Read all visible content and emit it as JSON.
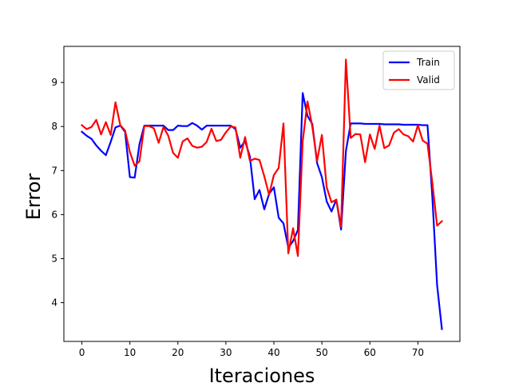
{
  "chart_data": {
    "type": "line",
    "title": "",
    "xlabel": "Iteraciones",
    "ylabel": "Error",
    "xlim": [
      -3.75,
      78.75
    ],
    "ylim": [
      3.12,
      9.82
    ],
    "xticks": [
      0,
      10,
      20,
      30,
      40,
      50,
      60,
      70
    ],
    "yticks": [
      4,
      5,
      6,
      7,
      8,
      9
    ],
    "grid": false,
    "legend": "top-right",
    "x": [
      0,
      1,
      2,
      3,
      4,
      5,
      6,
      7,
      8,
      9,
      10,
      11,
      12,
      13,
      14,
      15,
      16,
      17,
      18,
      19,
      20,
      21,
      22,
      23,
      24,
      25,
      26,
      27,
      28,
      29,
      30,
      31,
      32,
      33,
      34,
      35,
      36,
      37,
      38,
      39,
      40,
      41,
      42,
      43,
      44,
      45,
      46,
      47,
      48,
      49,
      50,
      51,
      52,
      53,
      54,
      55,
      56,
      57,
      58,
      59,
      60,
      61,
      62,
      63,
      64,
      65,
      66,
      67,
      68,
      69,
      70,
      71,
      72,
      73,
      74,
      75
    ],
    "series": [
      {
        "name": "Train",
        "color": "#0000ff",
        "values": [
          7.88,
          7.79,
          7.72,
          7.57,
          7.45,
          7.35,
          7.65,
          7.98,
          8.02,
          7.88,
          6.85,
          6.84,
          7.6,
          8.02,
          8.02,
          8.02,
          8.02,
          8.02,
          7.92,
          7.92,
          8.02,
          8.01,
          8.01,
          8.08,
          8.02,
          7.93,
          8.02,
          8.02,
          8.02,
          8.02,
          8.02,
          8.02,
          7.94,
          7.52,
          7.67,
          7.32,
          6.35,
          6.56,
          6.12,
          6.47,
          6.62,
          5.93,
          5.8,
          5.25,
          5.4,
          5.65,
          8.76,
          8.24,
          8.06,
          7.17,
          6.85,
          6.3,
          6.07,
          6.34,
          5.66,
          7.44,
          8.07,
          8.07,
          8.07,
          8.06,
          8.06,
          8.06,
          8.06,
          8.05,
          8.05,
          8.05,
          8.05,
          8.04,
          8.04,
          8.04,
          8.04,
          8.03,
          8.03,
          6.42,
          4.4,
          3.4
        ]
      },
      {
        "name": "Valid",
        "color": "#ff0000",
        "values": [
          8.03,
          7.94,
          7.99,
          8.15,
          7.82,
          8.1,
          7.81,
          8.55,
          8.03,
          7.91,
          7.42,
          7.11,
          7.21,
          8.01,
          8.01,
          7.96,
          7.63,
          7.99,
          7.79,
          7.4,
          7.29,
          7.66,
          7.73,
          7.56,
          7.52,
          7.54,
          7.65,
          7.95,
          7.67,
          7.7,
          7.87,
          8.0,
          7.98,
          7.29,
          7.76,
          7.22,
          7.27,
          7.24,
          6.87,
          6.45,
          6.9,
          7.06,
          8.07,
          5.12,
          5.69,
          5.06,
          7.66,
          8.57,
          8.0,
          7.22,
          7.81,
          6.62,
          6.28,
          6.34,
          5.73,
          9.52,
          7.74,
          7.83,
          7.82,
          7.19,
          7.82,
          7.49,
          8.02,
          7.51,
          7.57,
          7.86,
          7.94,
          7.82,
          7.78,
          7.66,
          8.03,
          7.68,
          7.61,
          6.73,
          5.75,
          5.85
        ]
      }
    ]
  }
}
